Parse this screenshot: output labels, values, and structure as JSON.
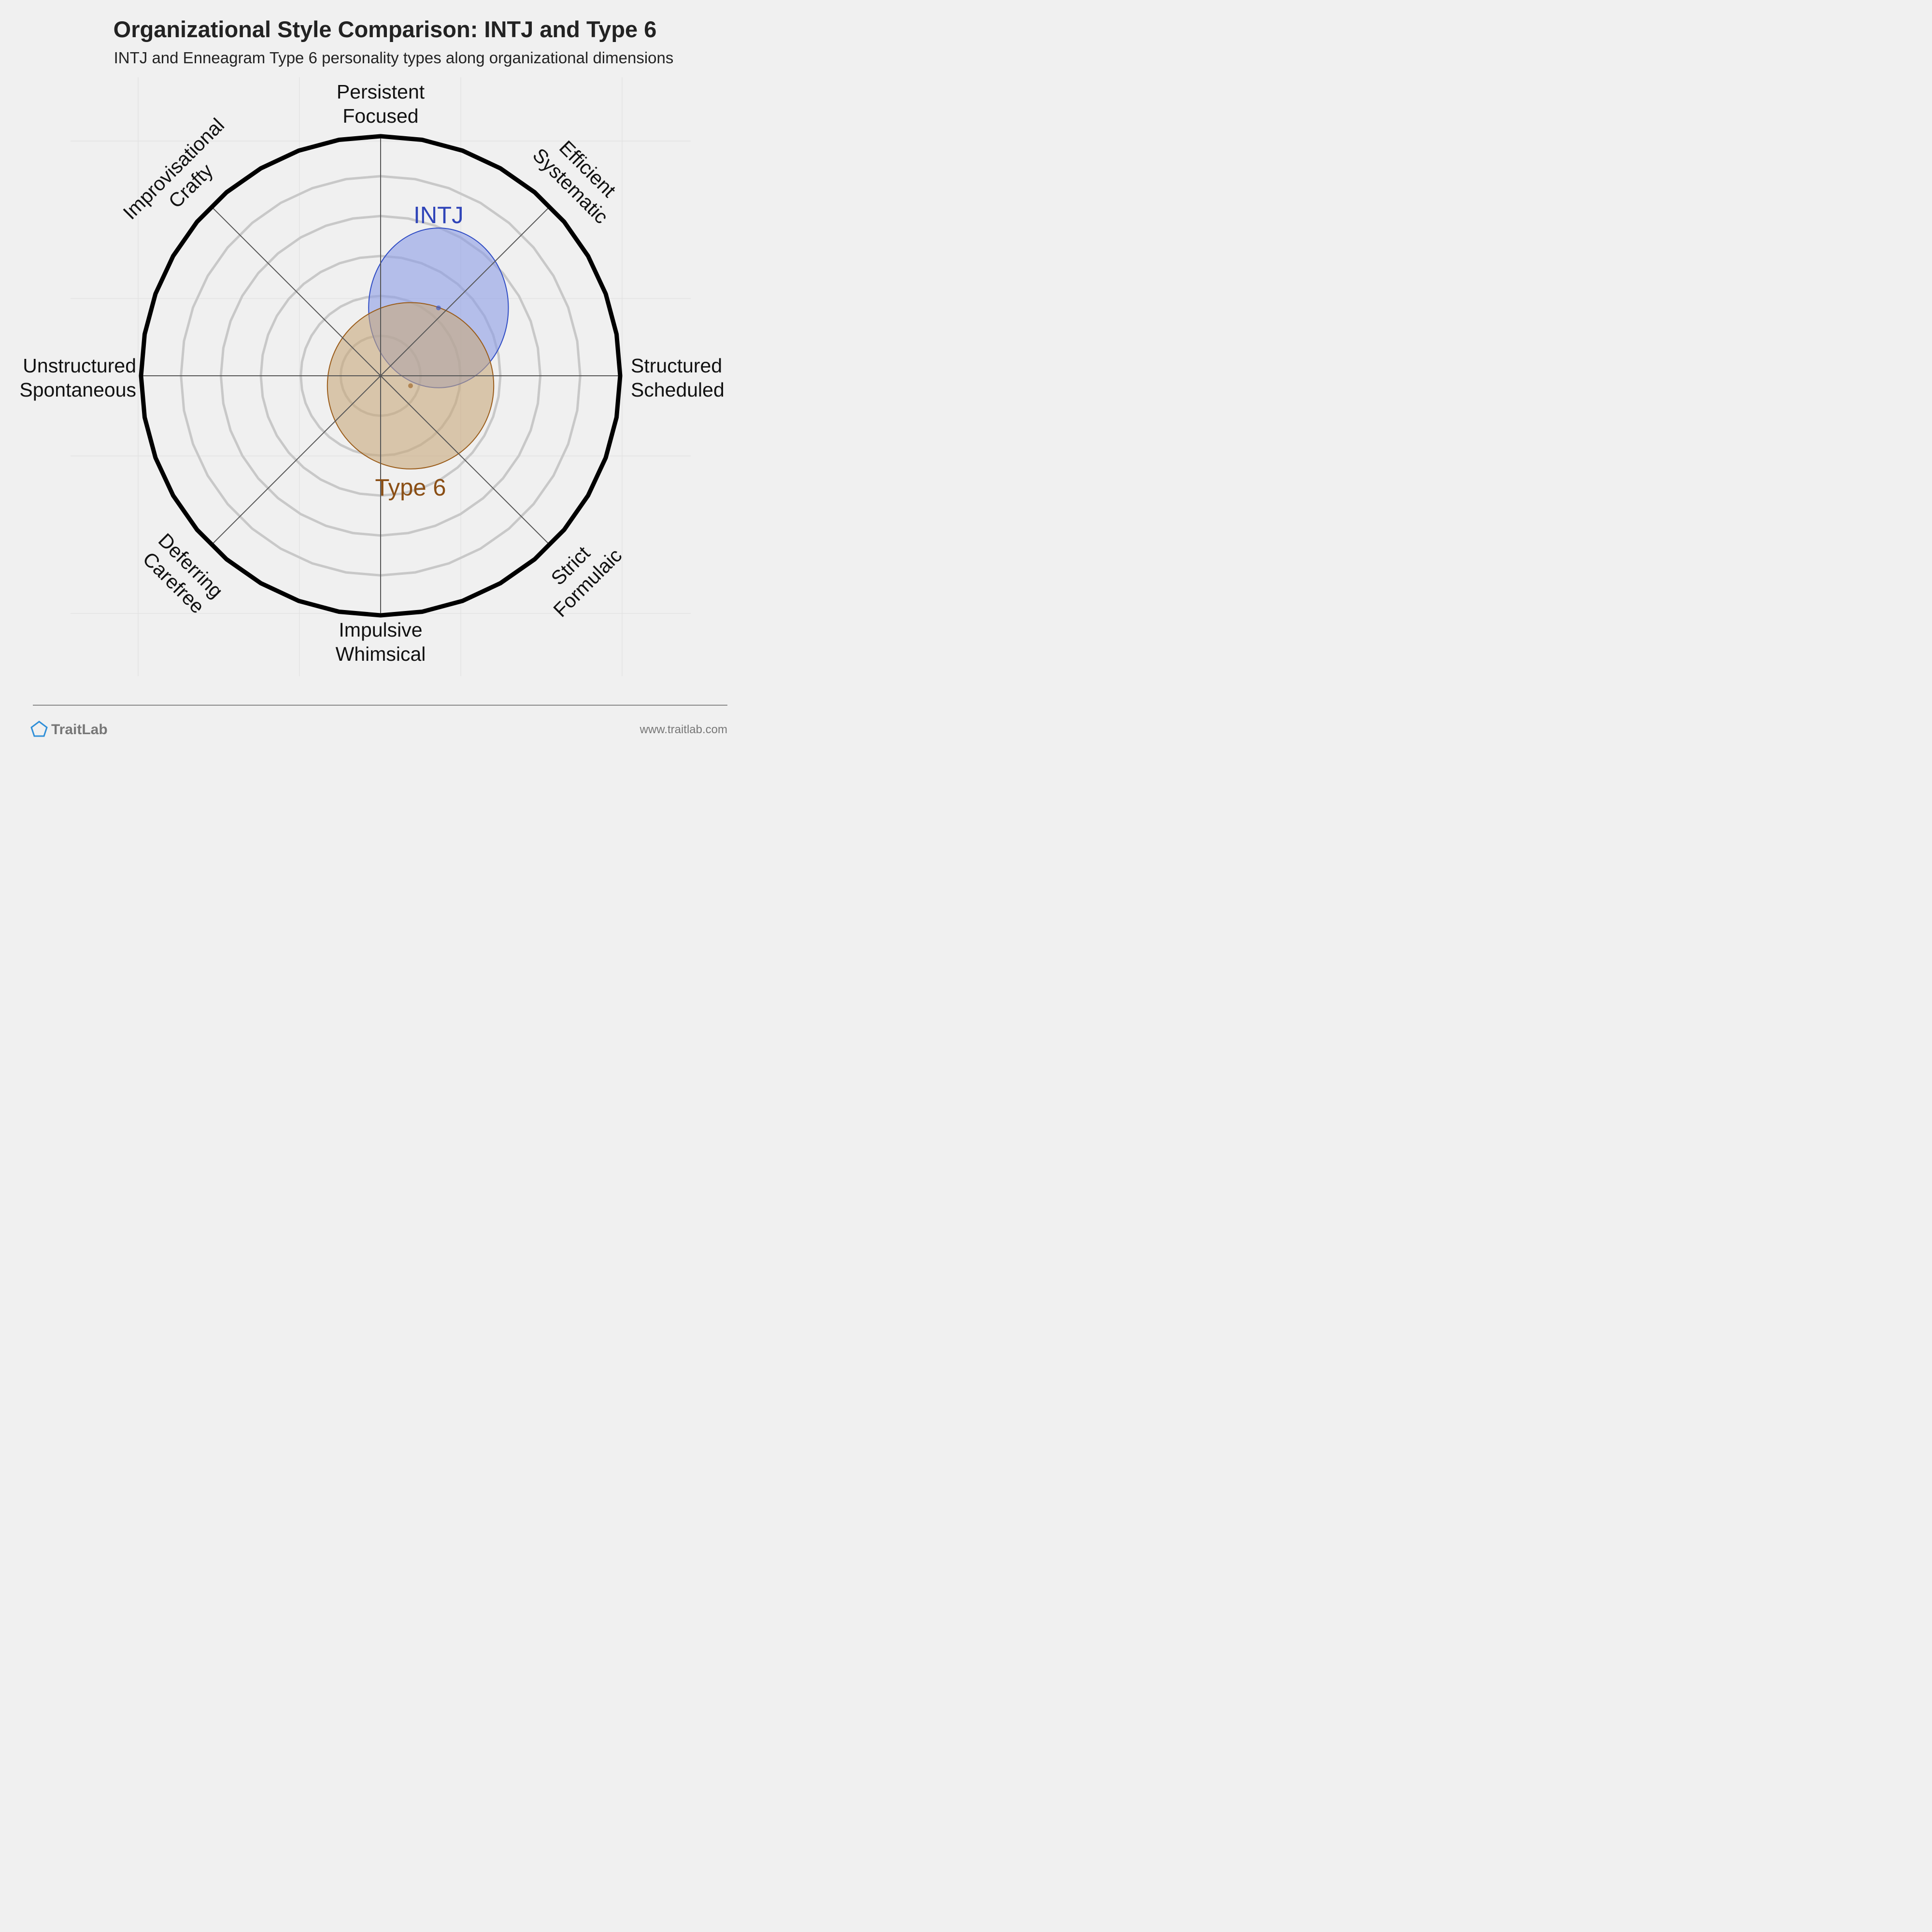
{
  "title": "Organizational Style Comparison: INTJ and Type 6",
  "subtitle": "INTJ and Enneagram Type 6 personality types along organizational dimensions",
  "footer": {
    "brand": "TraitLab",
    "url": "www.traitlab.com",
    "logo_icon": "pentagon-logo-icon",
    "logo_color": "#2f8fd8"
  },
  "chart_data": {
    "type": "radar-bubble",
    "rings": 6,
    "max_value": 6,
    "grid": true,
    "axes": [
      {
        "lines": [
          "Persistent",
          "Focused"
        ],
        "angle": 90
      },
      {
        "lines": [
          "Efficient",
          "Systematic"
        ],
        "angle": 45
      },
      {
        "lines": [
          "Structured",
          "Scheduled"
        ],
        "angle": 0
      },
      {
        "lines": [
          "Strict",
          "Formulaic"
        ],
        "angle": -45
      },
      {
        "lines": [
          "Impulsive",
          "Whimsical"
        ],
        "angle": -90
      },
      {
        "lines": [
          "Deferring",
          "Carefree"
        ],
        "angle": -135
      },
      {
        "lines": [
          "Unstructured",
          "Spontaneous"
        ],
        "angle": 180
      },
      {
        "lines": [
          "Improvisational",
          "Crafty"
        ],
        "angle": 135
      }
    ],
    "series": [
      {
        "name": "INTJ",
        "x": 1.45,
        "y": 1.7,
        "spread_x": 2.1,
        "spread_y": 2.4,
        "color": "#2f4cc4",
        "fill": "#8c9de6",
        "label_color": "#2f44b8"
      },
      {
        "name": "Type 6",
        "x": 0.75,
        "y": -0.25,
        "spread_x": 2.5,
        "spread_y": 2.5,
        "color": "#9a5c1a",
        "fill": "#c8a87c",
        "label_color": "#8a4e14"
      }
    ]
  }
}
